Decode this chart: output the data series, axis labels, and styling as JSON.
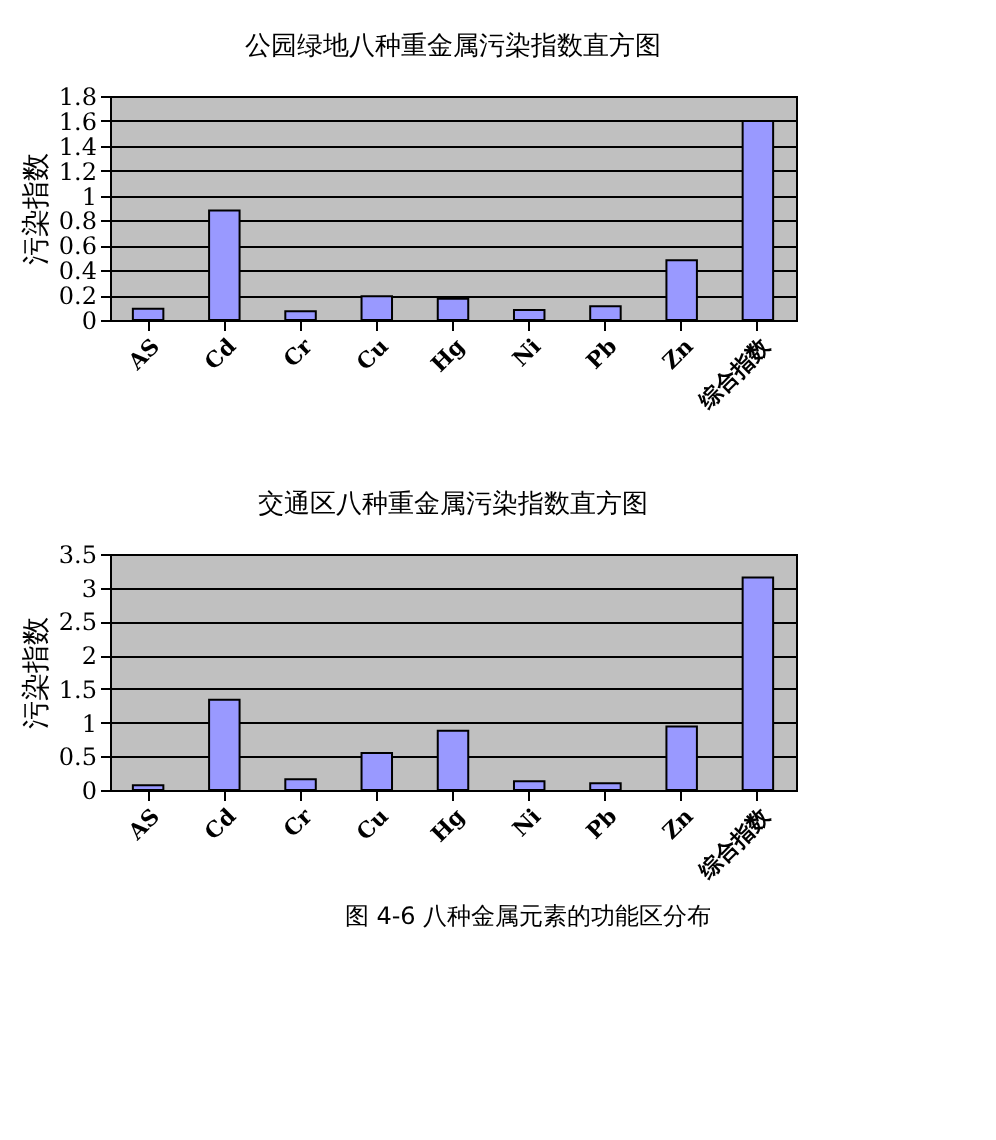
{
  "chart_data": [
    {
      "type": "bar",
      "title": "公园绿地八种重金属污染指数直方图",
      "ylabel": "污染指数",
      "categories": [
        "AS",
        "Cd",
        "Cr",
        "Cu",
        "Hg",
        "Ni",
        "Pb",
        "Zn",
        "综合指数"
      ],
      "values": [
        0.09,
        0.88,
        0.07,
        0.19,
        0.17,
        0.08,
        0.11,
        0.48,
        1.6
      ],
      "color": "#9999ff",
      "ylim": [
        0,
        1.8
      ],
      "yticks": [
        0,
        0.2,
        0.4,
        0.6,
        0.8,
        1,
        1.2,
        1.4,
        1.6,
        1.8
      ],
      "grid": "y"
    },
    {
      "type": "bar",
      "title": "交通区八种重金属污染指数直方图",
      "ylabel": "污染指数",
      "categories": [
        "AS",
        "Cd",
        "Cr",
        "Cu",
        "Hg",
        "Ni",
        "Pb",
        "Zn",
        "综合指数"
      ],
      "values": [
        0.07,
        1.34,
        0.16,
        0.55,
        0.88,
        0.13,
        0.1,
        0.94,
        3.15
      ],
      "color": "#9999ff",
      "ylim": [
        0,
        3.5
      ],
      "yticks": [
        0,
        0.5,
        1,
        1.5,
        2,
        2.5,
        3,
        3.5
      ],
      "grid": "y",
      "annotations": [
        "图 4-6 八种金属元素的功能区分布"
      ]
    }
  ]
}
